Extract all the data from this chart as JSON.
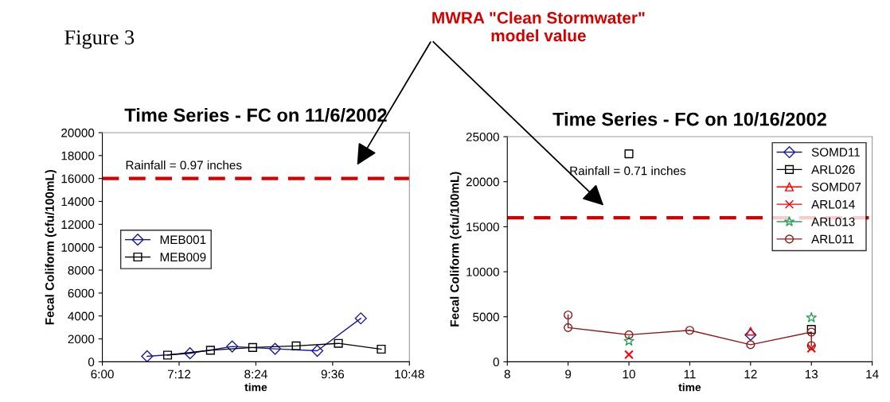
{
  "chart_data": [
    {
      "type": "line",
      "title": "Time Series - FC on 11/6/2002",
      "xlabel": "time",
      "ylabel": "Fecal Coliform (cfu/100mL)",
      "annotations": [
        "Figure 3",
        "MWRA \"Clean Stormwater\"\nmodel value",
        "Rainfall = 0.97 inches"
      ],
      "xlim": [
        6,
        10.8
      ],
      "xticks": [
        {
          "value": 6,
          "label": "6:00"
        },
        {
          "value": 7.2,
          "label": "7:12"
        },
        {
          "value": 8.4,
          "label": "8:24"
        },
        {
          "value": 9.6,
          "label": "9:36"
        },
        {
          "value": 10.8,
          "label": "10:48"
        }
      ],
      "ylim": [
        0,
        20000
      ],
      "yticks": [
        0,
        2000,
        4000,
        6000,
        8000,
        10000,
        12000,
        14000,
        16000,
        18000,
        20000
      ],
      "ref_lines": [
        {
          "axis": "y",
          "value": 16000,
          "color": "#d40000",
          "line_style": "dashed"
        }
      ],
      "legend": "center left",
      "grid": false,
      "series": [
        {
          "name": "MEB001",
          "color": "#1a1a9a",
          "marker": "diamond",
          "line_style": "solid",
          "x": [
            6.7,
            7.37,
            8.03,
            8.7,
            9.36,
            10.04
          ],
          "values": [
            480,
            740,
            1340,
            1130,
            960,
            3790
          ]
        },
        {
          "name": "MEB009",
          "color": "#000000",
          "marker": "square",
          "line_style": "solid",
          "x": [
            7.02,
            7.69,
            8.35,
            9.03,
            9.69,
            10.36
          ],
          "values": [
            580,
            1010,
            1250,
            1390,
            1610,
            1100
          ]
        }
      ]
    },
    {
      "type": "line",
      "title": "Time Series - FC on 10/16/2002",
      "xlabel": "time",
      "ylabel": "Fecal Coliform (cfu/100mL)",
      "annotations": [
        "Rainfall = 0.71 inches"
      ],
      "xlim": [
        8,
        14
      ],
      "xticks": [
        8,
        9,
        10,
        11,
        12,
        13,
        14
      ],
      "ylim": [
        0,
        25000
      ],
      "yticks": [
        0,
        5000,
        10000,
        15000,
        20000,
        25000
      ],
      "ref_lines": [
        {
          "axis": "y",
          "value": 16000,
          "color": "#d40000",
          "line_style": "dashed"
        }
      ],
      "legend": "top right",
      "grid": false,
      "series": [
        {
          "name": "SOMD11",
          "type": "scatter",
          "color": "#1a1a9a",
          "marker": "diamond",
          "x": [
            12
          ],
          "values": [
            3000
          ]
        },
        {
          "name": "ARL026",
          "type": "scatter",
          "color": "#000000",
          "marker": "square",
          "x": [
            10,
            13
          ],
          "values": [
            23100,
            3600
          ]
        },
        {
          "name": "SOMD07",
          "type": "scatter",
          "color": "#ff0000",
          "marker": "triangle",
          "x": [
            12
          ],
          "values": [
            3400
          ]
        },
        {
          "name": "ARL014",
          "type": "scatter",
          "color": "#ff0000",
          "marker": "cross",
          "x": [
            10,
            13
          ],
          "values": [
            800,
            1500
          ]
        },
        {
          "name": "ARL013",
          "type": "scatter",
          "color": "#2e9e60",
          "marker": "star",
          "x": [
            10,
            13
          ],
          "values": [
            2300,
            4900
          ]
        },
        {
          "name": "ARL011",
          "color": "#8b1a1a",
          "marker": "circle",
          "line_style": "solid",
          "x": [
            9,
            9,
            10,
            11,
            12,
            13,
            13
          ],
          "values": [
            5200,
            3800,
            3000,
            3500,
            1900,
            3300,
            1800
          ]
        }
      ]
    }
  ]
}
